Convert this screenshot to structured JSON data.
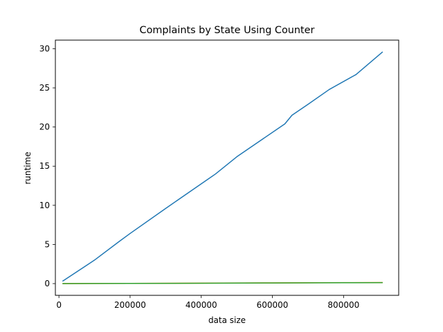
{
  "chart_data": {
    "type": "line",
    "title": "Complaints by State Using Counter",
    "xlabel": "data size",
    "ylabel": "runtime",
    "xlim": [
      -10000,
      955000
    ],
    "ylim": [
      -1.5,
      31.1
    ],
    "grid": false,
    "x_ticks": [
      0,
      200000,
      400000,
      600000,
      800000
    ],
    "x_tick_labels": [
      "0",
      "200000",
      "400000",
      "600000",
      "800000"
    ],
    "y_ticks": [
      0,
      5,
      10,
      15,
      20,
      25,
      30
    ],
    "y_tick_labels": [
      "0",
      "5",
      "10",
      "15",
      "20",
      "25",
      "30"
    ],
    "series": [
      {
        "color": "#1f77b4",
        "x": [
          10000,
          100000,
          170000,
          200000,
          300000,
          440000,
          500000,
          635000,
          655000,
          700000,
          760000,
          835000,
          910000
        ],
        "y": [
          0.3,
          3.0,
          5.4,
          6.4,
          9.6,
          14.0,
          16.2,
          20.4,
          21.5,
          22.9,
          24.8,
          26.7,
          29.6
        ]
      },
      {
        "color": "#ff7f0e",
        "x": [
          10000,
          200000,
          400000,
          600000,
          800000,
          910000
        ],
        "y": [
          0.0,
          0.02,
          0.06,
          0.09,
          0.12,
          0.14
        ]
      },
      {
        "color": "#2ca02c",
        "x": [
          10000,
          200000,
          400000,
          600000,
          800000,
          910000
        ],
        "y": [
          0.0,
          0.02,
          0.05,
          0.08,
          0.11,
          0.12
        ]
      }
    ]
  }
}
